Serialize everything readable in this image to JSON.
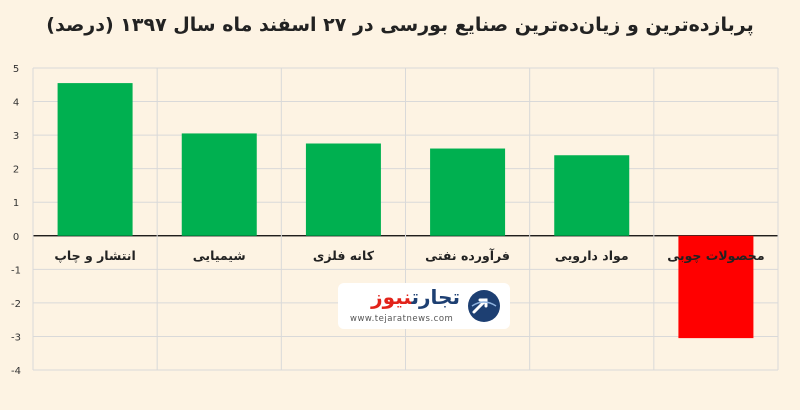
{
  "chart_data": {
    "type": "bar",
    "title": "پربازده‌ترین و زیان‌ده‌ترین صنایع بورسی در ۲۷ اسفند ماه سال ۱۳۹۷ (درصد)",
    "categories": [
      "انتشار و چاپ",
      "شیمیایی",
      "کانه فلزی",
      "فرآورده نفتی",
      "مواد دارویی",
      "محصولات چوبی"
    ],
    "values": [
      4.55,
      3.05,
      2.75,
      2.6,
      2.4,
      -3.05
    ],
    "ylim": [
      -4,
      5
    ],
    "yticks": [
      "5",
      "4",
      "3",
      "2",
      "1",
      "0",
      "-1",
      "-2",
      "-3",
      "-4"
    ],
    "grid": true,
    "colors": {
      "positive": "#00b050",
      "negative": "#ff0000"
    }
  },
  "watermark": {
    "brand_a": "تجارت",
    "brand_b": "نیوز",
    "url": "www.tejaratnews.com",
    "brand_a_color": "#1d3f72",
    "brand_b_color": "#e2231a"
  }
}
